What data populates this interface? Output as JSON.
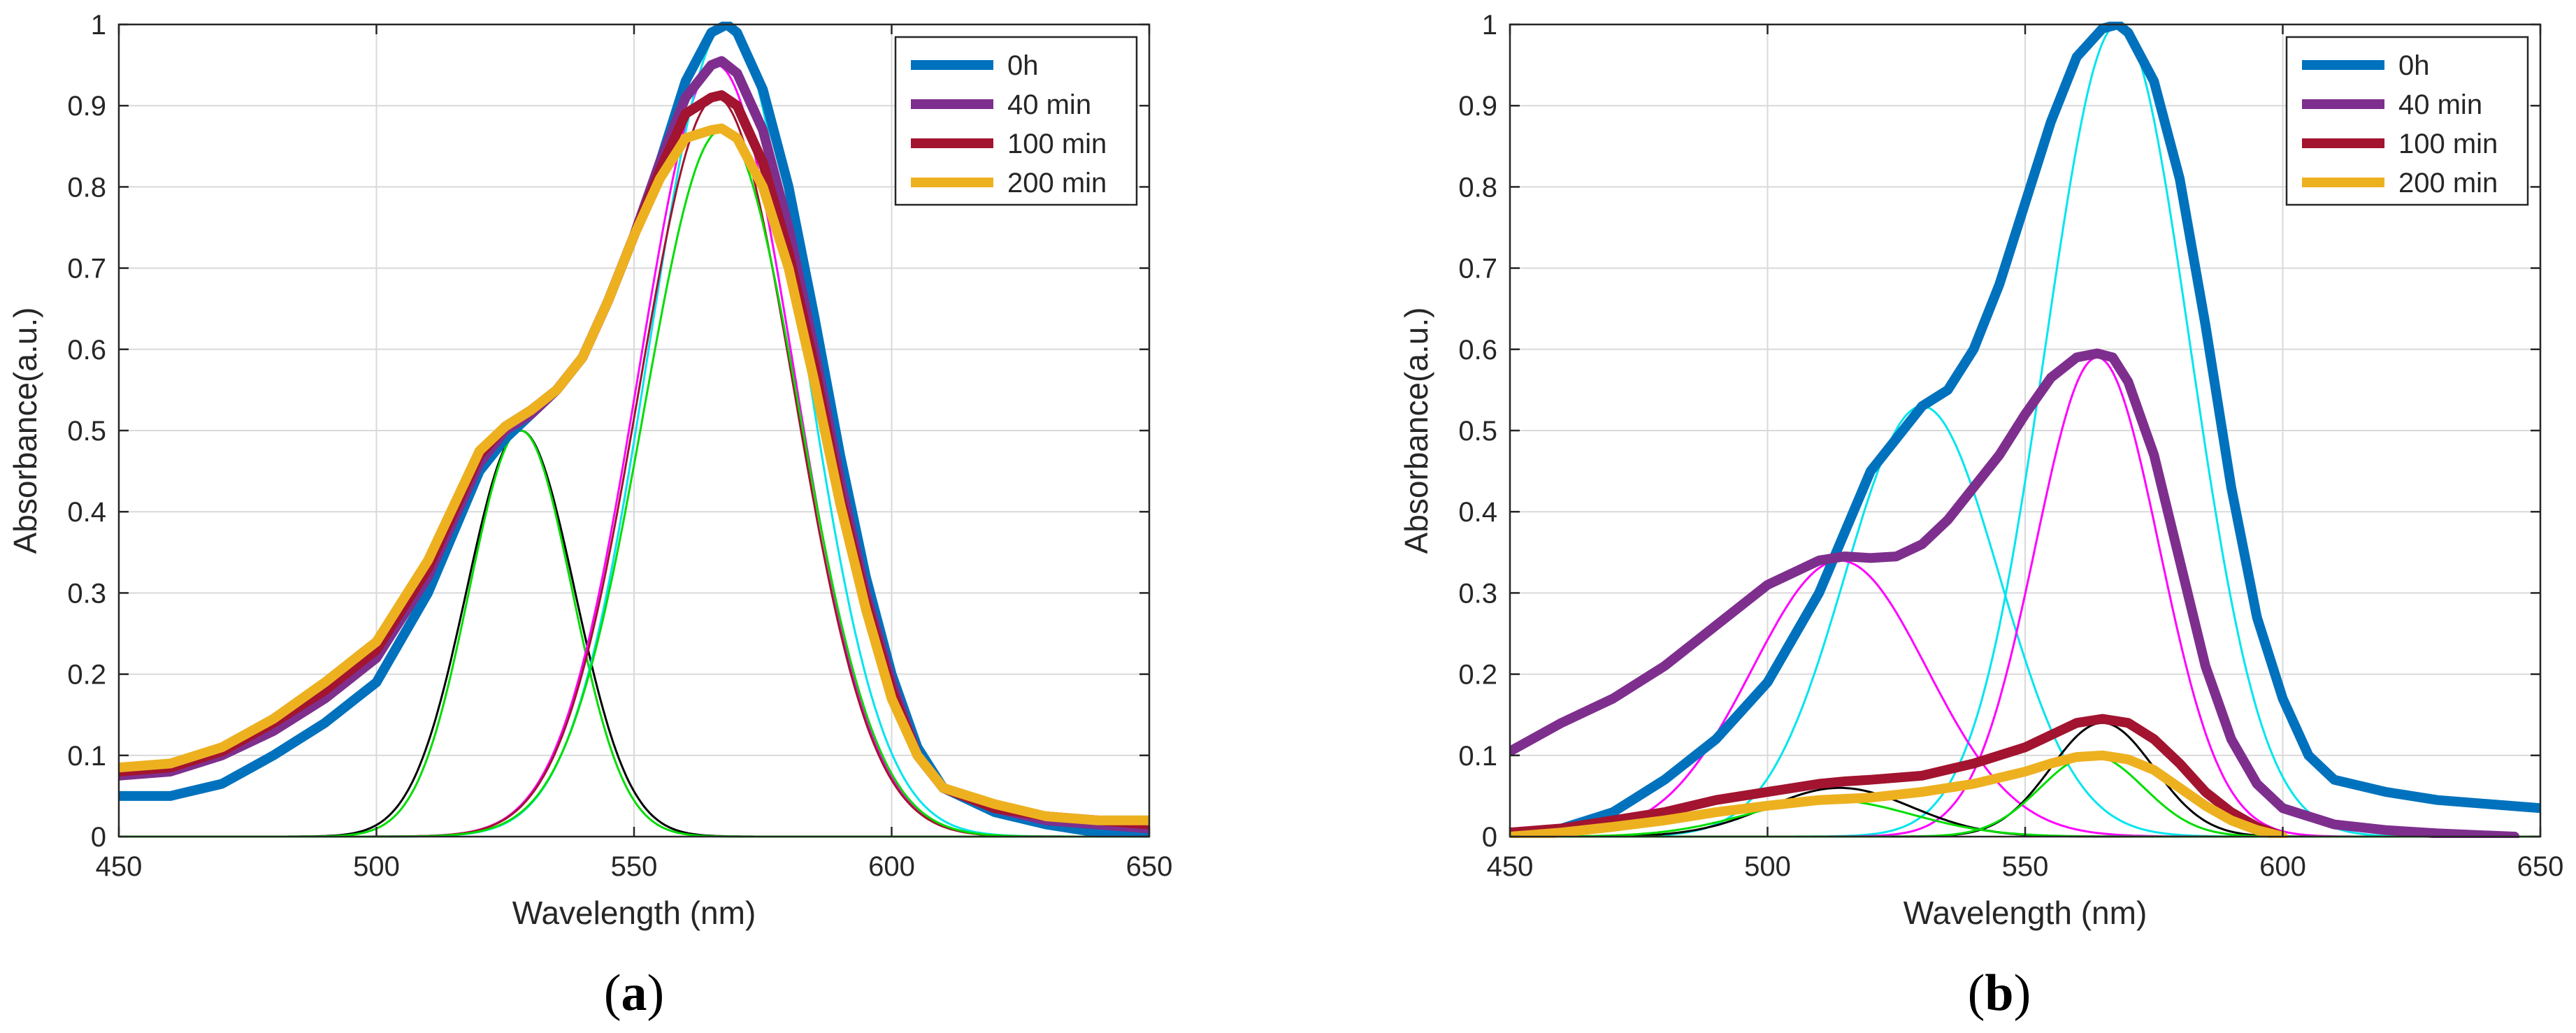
{
  "colors": {
    "0h": "#0072BD",
    "40min": "#7E2F8E",
    "100min": "#A2142F",
    "200min": "#EDB120",
    "fit_cyan": "#00E5EE",
    "fit_magenta": "#FF00FF",
    "fit_black": "#000000",
    "fit_green": "#00DD00",
    "grid": "#d9d9d9"
  },
  "chart_data": [
    {
      "type": "line",
      "panel": "a",
      "caption_letter": "a",
      "xlabel": "Wavelength (nm)",
      "ylabel": "Absorbance(a.u.)",
      "xlim": [
        450,
        650
      ],
      "ylim": [
        0,
        1
      ],
      "xticks": [
        "450",
        "500",
        "550",
        "600",
        "650"
      ],
      "yticks": [
        "0",
        "0.1",
        "0.2",
        "0.3",
        "0.4",
        "0.5",
        "0.6",
        "0.7",
        "0.8",
        "0.9",
        "1"
      ],
      "grid": true,
      "legend_position": "top-right",
      "legend": [
        "0h",
        "40 min",
        "100 min",
        "200 min"
      ],
      "series": [
        {
          "name": "0h",
          "color": "#0072BD",
          "role": "measured",
          "x": [
            450,
            460,
            470,
            480,
            490,
            500,
            510,
            520,
            525,
            530,
            535,
            540,
            545,
            550,
            555,
            560,
            565,
            568,
            570,
            575,
            580,
            585,
            590,
            595,
            600,
            605,
            610,
            620,
            630,
            640,
            650
          ],
          "y": [
            0.05,
            0.05,
            0.065,
            0.1,
            0.14,
            0.19,
            0.3,
            0.45,
            0.49,
            0.52,
            0.55,
            0.59,
            0.66,
            0.74,
            0.83,
            0.93,
            0.99,
            1.0,
            0.99,
            0.92,
            0.8,
            0.64,
            0.47,
            0.32,
            0.2,
            0.11,
            0.06,
            0.03,
            0.015,
            0.005,
            0.005
          ]
        },
        {
          "name": "40 min",
          "color": "#7E2F8E",
          "role": "measured",
          "x": [
            450,
            460,
            470,
            480,
            490,
            500,
            510,
            520,
            525,
            530,
            535,
            540,
            545,
            550,
            555,
            560,
            565,
            567,
            570,
            575,
            580,
            585,
            590,
            595,
            600,
            605,
            610,
            620,
            630,
            640,
            650
          ],
          "y": [
            0.075,
            0.08,
            0.1,
            0.13,
            0.17,
            0.22,
            0.32,
            0.46,
            0.5,
            0.52,
            0.55,
            0.59,
            0.66,
            0.74,
            0.83,
            0.91,
            0.95,
            0.955,
            0.94,
            0.87,
            0.75,
            0.6,
            0.44,
            0.3,
            0.19,
            0.1,
            0.06,
            0.035,
            0.02,
            0.015,
            0.01
          ]
        },
        {
          "name": "100 min",
          "color": "#A2142F",
          "role": "measured",
          "x": [
            450,
            460,
            470,
            480,
            490,
            500,
            510,
            520,
            525,
            530,
            535,
            540,
            545,
            550,
            555,
            560,
            565,
            567,
            570,
            575,
            580,
            585,
            590,
            595,
            600,
            605,
            610,
            620,
            630,
            640,
            650
          ],
          "y": [
            0.08,
            0.085,
            0.105,
            0.14,
            0.18,
            0.23,
            0.33,
            0.47,
            0.505,
            0.525,
            0.55,
            0.59,
            0.66,
            0.74,
            0.82,
            0.89,
            0.91,
            0.913,
            0.9,
            0.83,
            0.72,
            0.58,
            0.42,
            0.29,
            0.18,
            0.1,
            0.06,
            0.035,
            0.025,
            0.02,
            0.015
          ]
        },
        {
          "name": "200 min",
          "color": "#EDB120",
          "role": "measured",
          "x": [
            450,
            460,
            470,
            480,
            490,
            500,
            510,
            520,
            525,
            530,
            535,
            540,
            545,
            550,
            555,
            560,
            565,
            567,
            570,
            575,
            580,
            585,
            590,
            595,
            600,
            605,
            610,
            620,
            630,
            640,
            650
          ],
          "y": [
            0.085,
            0.09,
            0.11,
            0.145,
            0.19,
            0.24,
            0.34,
            0.475,
            0.505,
            0.525,
            0.55,
            0.59,
            0.66,
            0.74,
            0.81,
            0.86,
            0.87,
            0.872,
            0.86,
            0.8,
            0.7,
            0.56,
            0.41,
            0.28,
            0.17,
            0.1,
            0.06,
            0.04,
            0.025,
            0.02,
            0.02
          ]
        }
      ],
      "fit_components": [
        {
          "color": "#000000",
          "center": 528,
          "amplitude": 0.5,
          "width": 10.5
        },
        {
          "color": "#00DD00",
          "center": 528,
          "amplitude": 0.5,
          "width": 10.0
        },
        {
          "color": "#FF00FF",
          "center": 566,
          "amplitude": 0.95,
          "width": 15.0
        },
        {
          "color": "#00E5EE",
          "center": 568,
          "amplitude": 1.0,
          "width": 15.0
        },
        {
          "color": "#A2142F",
          "center": 566,
          "amplitude": 0.91,
          "width": 15.0
        },
        {
          "color": "#00DD00",
          "center": 567,
          "amplitude": 0.87,
          "width": 15.0
        }
      ]
    },
    {
      "type": "line",
      "panel": "b",
      "caption_letter": "b",
      "xlabel": "Wavelength (nm)",
      "ylabel": "Absorbance(a.u.)",
      "xlim": [
        450,
        650
      ],
      "ylim": [
        0,
        1
      ],
      "xticks": [
        "450",
        "500",
        "550",
        "600",
        "650"
      ],
      "yticks": [
        "0",
        "0.1",
        "0.2",
        "0.3",
        "0.4",
        "0.5",
        "0.6",
        "0.7",
        "0.8",
        "0.9",
        "1"
      ],
      "grid": true,
      "legend_position": "top-right",
      "legend": [
        "0h",
        "40 min",
        "100 min",
        "200 min"
      ],
      "series": [
        {
          "name": "0h",
          "color": "#0072BD",
          "role": "measured",
          "x": [
            450,
            460,
            470,
            480,
            490,
            500,
            510,
            520,
            530,
            535,
            540,
            545,
            550,
            555,
            560,
            565,
            568,
            570,
            575,
            580,
            585,
            590,
            595,
            600,
            605,
            610,
            620,
            630,
            640,
            650
          ],
          "y": [
            0.0,
            0.01,
            0.03,
            0.07,
            0.12,
            0.19,
            0.3,
            0.45,
            0.53,
            0.55,
            0.6,
            0.68,
            0.78,
            0.88,
            0.96,
            0.995,
            1.0,
            0.99,
            0.93,
            0.81,
            0.63,
            0.43,
            0.27,
            0.17,
            0.1,
            0.07,
            0.055,
            0.045,
            0.04,
            0.035
          ]
        },
        {
          "name": "40 min",
          "color": "#7E2F8E",
          "role": "measured",
          "x": [
            450,
            460,
            470,
            480,
            490,
            500,
            510,
            515,
            520,
            525,
            530,
            535,
            540,
            545,
            550,
            555,
            560,
            564,
            567,
            570,
            575,
            580,
            585,
            590,
            595,
            600,
            610,
            620,
            630,
            645
          ],
          "y": [
            0.105,
            0.14,
            0.17,
            0.21,
            0.26,
            0.31,
            0.34,
            0.345,
            0.343,
            0.345,
            0.36,
            0.39,
            0.43,
            0.47,
            0.52,
            0.565,
            0.59,
            0.595,
            0.59,
            0.56,
            0.47,
            0.34,
            0.21,
            0.12,
            0.065,
            0.035,
            0.015,
            0.008,
            0.004,
            0.0
          ]
        },
        {
          "name": "100 min",
          "color": "#A2142F",
          "role": "measured",
          "x": [
            450,
            460,
            470,
            480,
            490,
            500,
            510,
            515,
            520,
            530,
            540,
            550,
            555,
            560,
            565,
            570,
            575,
            580,
            585,
            590,
            595,
            600
          ],
          "y": [
            0.005,
            0.01,
            0.02,
            0.03,
            0.045,
            0.055,
            0.065,
            0.068,
            0.07,
            0.075,
            0.09,
            0.11,
            0.125,
            0.14,
            0.145,
            0.14,
            0.12,
            0.09,
            0.055,
            0.03,
            0.012,
            0.0
          ]
        },
        {
          "name": "200 min",
          "color": "#EDB120",
          "role": "measured",
          "x": [
            450,
            460,
            470,
            480,
            490,
            500,
            510,
            520,
            530,
            540,
            550,
            555,
            560,
            565,
            570,
            575,
            580,
            585,
            590,
            595,
            600
          ],
          "y": [
            0.0,
            0.005,
            0.012,
            0.02,
            0.03,
            0.038,
            0.045,
            0.048,
            0.055,
            0.065,
            0.08,
            0.09,
            0.098,
            0.1,
            0.095,
            0.082,
            0.06,
            0.038,
            0.02,
            0.008,
            0.0
          ]
        }
      ],
      "fit_components": [
        {
          "color": "#00E5EE",
          "center": 530,
          "amplitude": 0.53,
          "width": 15.0
        },
        {
          "color": "#00E5EE",
          "center": 568,
          "amplitude": 1.0,
          "width": 14.0
        },
        {
          "color": "#FF00FF",
          "center": 514,
          "amplitude": 0.34,
          "width": 17.0
        },
        {
          "color": "#FF00FF",
          "center": 564,
          "amplitude": 0.59,
          "width": 12.0
        },
        {
          "color": "#000000",
          "center": 514,
          "amplitude": 0.06,
          "width": 14.0
        },
        {
          "color": "#000000",
          "center": 565,
          "amplitude": 0.14,
          "width": 10.0
        },
        {
          "color": "#00DD00",
          "center": 512,
          "amplitude": 0.045,
          "width": 16.0
        },
        {
          "color": "#00DD00",
          "center": 563,
          "amplitude": 0.1,
          "width": 10.0
        }
      ]
    }
  ]
}
